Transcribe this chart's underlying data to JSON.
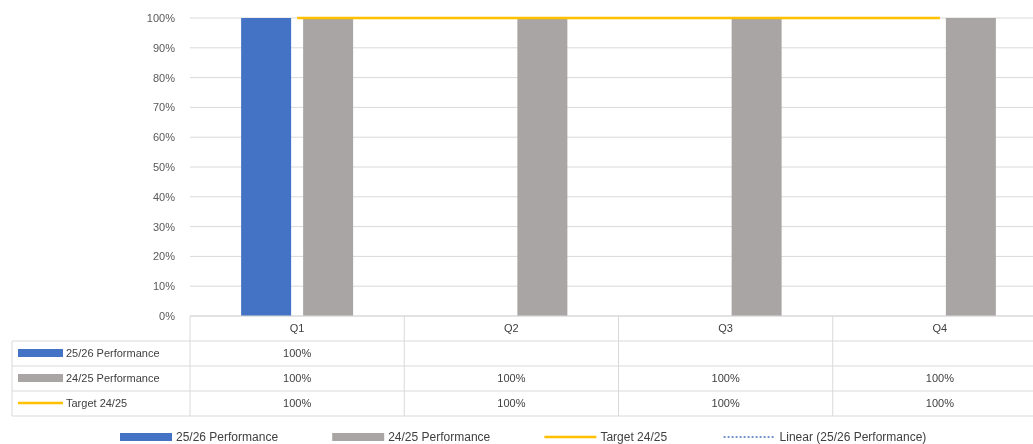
{
  "chart_data": {
    "type": "bar",
    "categories": [
      "Q1",
      "Q2",
      "Q3",
      "Q4"
    ],
    "series": [
      {
        "name": "25/26 Performance",
        "color": "#4472c4",
        "values": [
          100,
          null,
          null,
          null
        ],
        "value_labels": [
          "100%",
          null,
          null,
          null
        ]
      },
      {
        "name": "24/25 Performance",
        "color": "#a9a5a5",
        "values": [
          100,
          100,
          100,
          100
        ],
        "value_labels": [
          "100%",
          "100%",
          "100%",
          "100%"
        ]
      },
      {
        "name": "Target 24/25",
        "type": "line",
        "color": "#ffc000",
        "values": [
          100,
          100,
          100,
          100
        ],
        "value_labels": [
          "100%",
          "100%",
          "100%",
          "100%"
        ]
      },
      {
        "name": "Linear (25/26 Performance)",
        "type": "line",
        "line_style": "dotted",
        "color": "#4472c4",
        "values": [
          null,
          null,
          null,
          null
        ]
      }
    ],
    "ylim": [
      0,
      100
    ],
    "yticks": [
      {
        "value": 0,
        "label": "0%"
      },
      {
        "value": 10,
        "label": "10%"
      },
      {
        "value": 20,
        "label": "20%"
      },
      {
        "value": 30,
        "label": "30%"
      },
      {
        "value": 40,
        "label": "40%"
      },
      {
        "value": 50,
        "label": "50%"
      },
      {
        "value": 60,
        "label": "60%"
      },
      {
        "value": 70,
        "label": "70%"
      },
      {
        "value": 80,
        "label": "80%"
      },
      {
        "value": 90,
        "label": "90%"
      },
      {
        "value": 100,
        "label": "100%"
      }
    ],
    "grid": "y",
    "legend": "bottom"
  }
}
